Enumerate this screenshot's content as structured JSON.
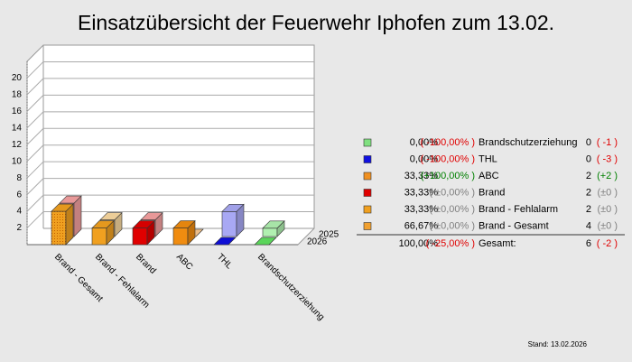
{
  "chart_data": {
    "type": "bar3d",
    "title": "Einsatzübersicht der Feuerwehr Iphofen zum 13.02.",
    "categories": [
      "Brand - Gesamt",
      "Brand - Fehlalarm",
      "Brand",
      "ABC",
      "THL",
      "Brandschutzerziehung"
    ],
    "series": [
      {
        "name": "2025",
        "colors": [
          "#f4a0a0",
          "#f8d8a0",
          "#f4a0a0",
          "#f8c890",
          "#a8a8f4",
          "#b0f0b0"
        ],
        "values": [
          4,
          2,
          2,
          0,
          3,
          1
        ]
      },
      {
        "name": "2026",
        "colors": [
          "#f0a020",
          "#f0a020",
          "#e00000",
          "#f08c10",
          "#1010e0",
          "#60e060"
        ],
        "values": [
          4,
          2,
          2,
          2,
          0,
          0
        ]
      }
    ],
    "ylim": [
      0,
      22
    ],
    "yticks": [
      2,
      4,
      6,
      8,
      10,
      12,
      14,
      16,
      18,
      20
    ],
    "legend": [
      {
        "color": "#80e080",
        "share": "0,00%",
        "change": "( -100,00% )",
        "change_color": "#e00000",
        "name": "Brandschutzerziehung",
        "count": "0",
        "diff": "( -1 )",
        "diff_color": "#e00000"
      },
      {
        "color": "#1010e0",
        "share": "0,00%",
        "change": "( -100,00% )",
        "change_color": "#e00000",
        "name": "THL",
        "count": "0",
        "diff": "( -3 )",
        "diff_color": "#e00000"
      },
      {
        "color": "#f09020",
        "share": "33,33%",
        "change": "(+100,00% )",
        "change_color": "#008000",
        "name": "ABC",
        "count": "2",
        "diff": "(+2 )",
        "diff_color": "#008000"
      },
      {
        "color": "#e00000",
        "share": "33,33%",
        "change": "( ±0,00% )",
        "change_color": "#808080",
        "name": "Brand",
        "count": "2",
        "diff": "(±0 )",
        "diff_color": "#808080"
      },
      {
        "color": "#f0a020",
        "share": "33,33%",
        "change": "( ±0,00% )",
        "change_color": "#808080",
        "name": "Brand - Fehlalarm",
        "count": "2",
        "diff": "(±0 )",
        "diff_color": "#808080"
      },
      {
        "color": "#f0a030",
        "share": "66,67%",
        "change": "( ±0,00% )",
        "change_color": "#808080",
        "name": "Brand - Gesamt",
        "count": "4",
        "diff": "(±0 )",
        "diff_color": "#808080"
      }
    ],
    "total": {
      "share": "100,00%",
      "change": "( -25,00% )",
      "change_color": "#e00000",
      "name": "Gesamt:",
      "count": "6",
      "diff": "( -2 )",
      "diff_color": "#e00000"
    },
    "footer": "Stand: 13.02.2026"
  }
}
